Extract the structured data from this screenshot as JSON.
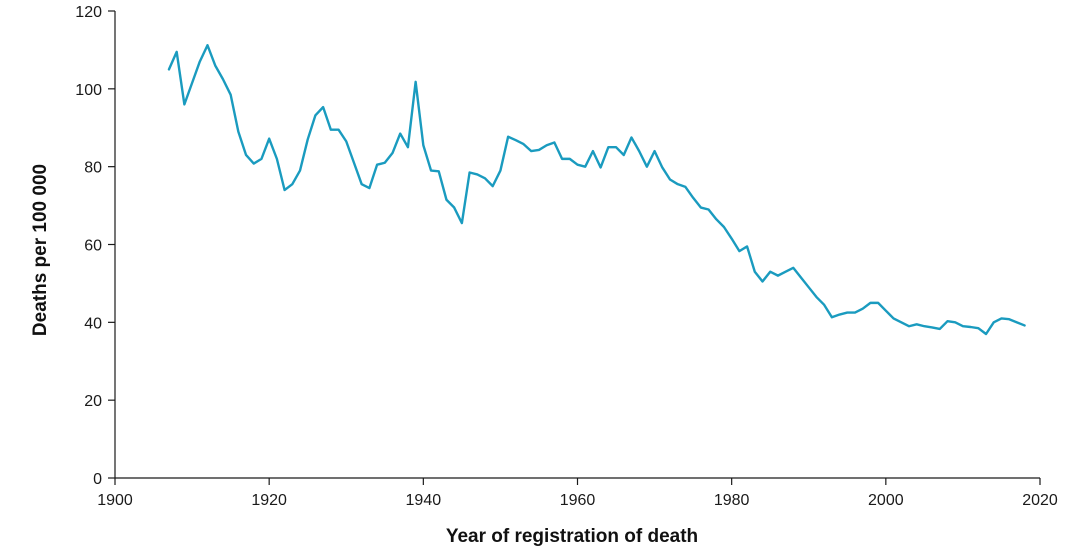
{
  "chart_data": {
    "type": "line",
    "title": "",
    "xlabel": "Year of registration of death",
    "ylabel": "Deaths per 100 000",
    "xlim": [
      1900,
      2020
    ],
    "ylim": [
      0,
      120
    ],
    "xticks": [
      1900,
      1920,
      1940,
      1960,
      1980,
      2000,
      2020
    ],
    "yticks": [
      0,
      20,
      40,
      60,
      80,
      100,
      120
    ],
    "grid": false,
    "legend": "none",
    "series": [
      {
        "color": "#1a9bbf",
        "x": [
          1907,
          1908,
          1909,
          1910,
          1911,
          1912,
          1913,
          1914,
          1915,
          1916,
          1917,
          1918,
          1919,
          1920,
          1921,
          1922,
          1923,
          1924,
          1925,
          1926,
          1927,
          1928,
          1929,
          1930,
          1931,
          1932,
          1933,
          1934,
          1935,
          1936,
          1937,
          1938,
          1939,
          1940,
          1941,
          1942,
          1943,
          1944,
          1945,
          1946,
          1947,
          1948,
          1949,
          1950,
          1951,
          1952,
          1953,
          1954,
          1955,
          1956,
          1957,
          1958,
          1959,
          1960,
          1961,
          1962,
          1963,
          1964,
          1965,
          1966,
          1967,
          1968,
          1969,
          1970,
          1971,
          1972,
          1973,
          1974,
          1975,
          1976,
          1977,
          1978,
          1979,
          1980,
          1981,
          1982,
          1983,
          1984,
          1985,
          1986,
          1987,
          1988,
          1989,
          1990,
          1991,
          1992,
          1993,
          1994,
          1995,
          1996,
          1997,
          1998,
          1999,
          2000,
          2001,
          2002,
          2003,
          2004,
          2005,
          2006,
          2007,
          2008,
          2009,
          2010,
          2011,
          2012,
          2013,
          2014,
          2015,
          2016,
          2017,
          2018
        ],
        "y": [
          105,
          109.5,
          96,
          101.5,
          107,
          111.2,
          106,
          102.5,
          98.5,
          89,
          83,
          80.8,
          82,
          87.2,
          82,
          74,
          75.5,
          79,
          87,
          93.2,
          95.3,
          89.5,
          89.5,
          86.5,
          81,
          75.5,
          74.5,
          80.5,
          81,
          83.5,
          88.5,
          85,
          101.8,
          85.5,
          79,
          78.8,
          71.5,
          69.5,
          65.5,
          78.5,
          78,
          77,
          75,
          79,
          87.7,
          86.8,
          85.8,
          84,
          84.3,
          85.5,
          86.2,
          82,
          82,
          80.5,
          80,
          84,
          79.8,
          85,
          85,
          83,
          87.5,
          84,
          80,
          84,
          79.8,
          76.7,
          75.5,
          74.8,
          72,
          69.5,
          69,
          66.5,
          64.5,
          61.5,
          58.3,
          59.5,
          53,
          50.5,
          53,
          52,
          53,
          54,
          51.5,
          49,
          46.5,
          44.5,
          41.3,
          42,
          42.5,
          42.5,
          43.5,
          45,
          45,
          43,
          41,
          40,
          39,
          39.5,
          39,
          38.7,
          38.3,
          40.3,
          40,
          39,
          38.8,
          38.5,
          37,
          40,
          41,
          40.8,
          40,
          39.2
        ]
      }
    ]
  }
}
